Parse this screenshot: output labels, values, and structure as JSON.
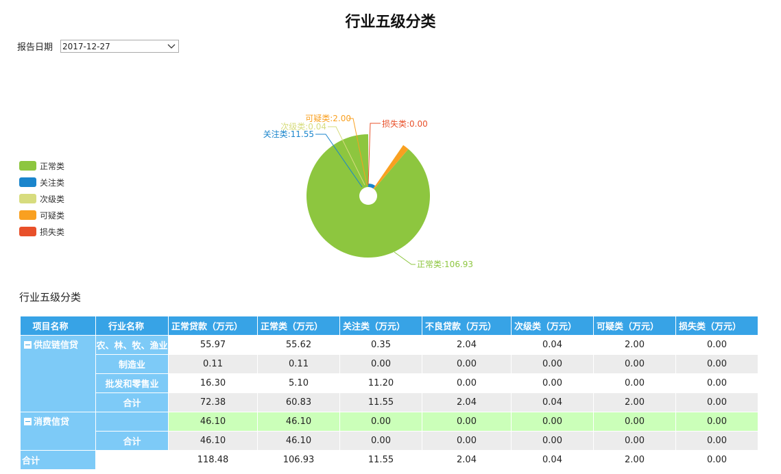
{
  "title": "行业五级分类",
  "filter": {
    "label": "报告日期",
    "value": "2017-12-27"
  },
  "legend": [
    {
      "label": "正常类",
      "color": "#8dc63f"
    },
    {
      "label": "关注类",
      "color": "#1a85cc"
    },
    {
      "label": "次级类",
      "color": "#d7dc7e"
    },
    {
      "label": "可疑类",
      "color": "#f9a020"
    },
    {
      "label": "损失类",
      "color": "#e8502a"
    }
  ],
  "chart_data": {
    "type": "pie",
    "title": "",
    "series": [
      {
        "name": "正常类",
        "value": 106.93,
        "label": "正常类:106.93",
        "color": "#8dc63f"
      },
      {
        "name": "关注类",
        "value": 11.55,
        "label": "关注类:11.55",
        "color": "#1a85cc"
      },
      {
        "name": "次级类",
        "value": 0.04,
        "label": "次级类:0.04",
        "color": "#d7dc7e"
      },
      {
        "name": "可疑类",
        "value": 2.0,
        "label": "可疑类:2.00",
        "color": "#f9a020"
      },
      {
        "name": "损失类",
        "value": 0.0,
        "label": "损失类:0.00",
        "color": "#e8502a"
      }
    ]
  },
  "table": {
    "section_title": "行业五级分类",
    "headers": [
      "项目名称",
      "行业名称",
      "正常贷款（万元）",
      "正常类（万元）",
      "关注类（万元）",
      "不良贷款（万元）",
      "次级类（万元）",
      "可疑类（万元）",
      "损失类（万元）"
    ],
    "groups": [
      {
        "name": "供应链信贷",
        "rows": [
          {
            "industry": "农、林、牧、渔业",
            "values": [
              "55.97",
              "55.62",
              "0.35",
              "2.04",
              "0.04",
              "2.00",
              "0.00"
            ]
          },
          {
            "industry": "制造业",
            "values": [
              "0.11",
              "0.11",
              "0.00",
              "0.00",
              "0.00",
              "0.00",
              "0.00"
            ]
          },
          {
            "industry": "批发和零售业",
            "values": [
              "16.30",
              "5.10",
              "11.20",
              "0.00",
              "0.00",
              "0.00",
              "0.00"
            ]
          },
          {
            "industry": "合计",
            "values": [
              "72.38",
              "60.83",
              "11.55",
              "2.04",
              "0.04",
              "2.00",
              "0.00"
            ]
          }
        ]
      },
      {
        "name": "消费信贷",
        "rows": [
          {
            "industry": "",
            "values": [
              "46.10",
              "46.10",
              "0.00",
              "0.00",
              "0.00",
              "0.00",
              "0.00"
            ]
          },
          {
            "industry": "合计",
            "values": [
              "46.10",
              "46.10",
              "0.00",
              "0.00",
              "0.00",
              "0.00",
              "0.00"
            ]
          }
        ]
      }
    ],
    "total": {
      "label": "合计",
      "values": [
        "118.48",
        "106.93",
        "11.55",
        "2.04",
        "0.04",
        "2.00",
        "0.00"
      ]
    }
  }
}
